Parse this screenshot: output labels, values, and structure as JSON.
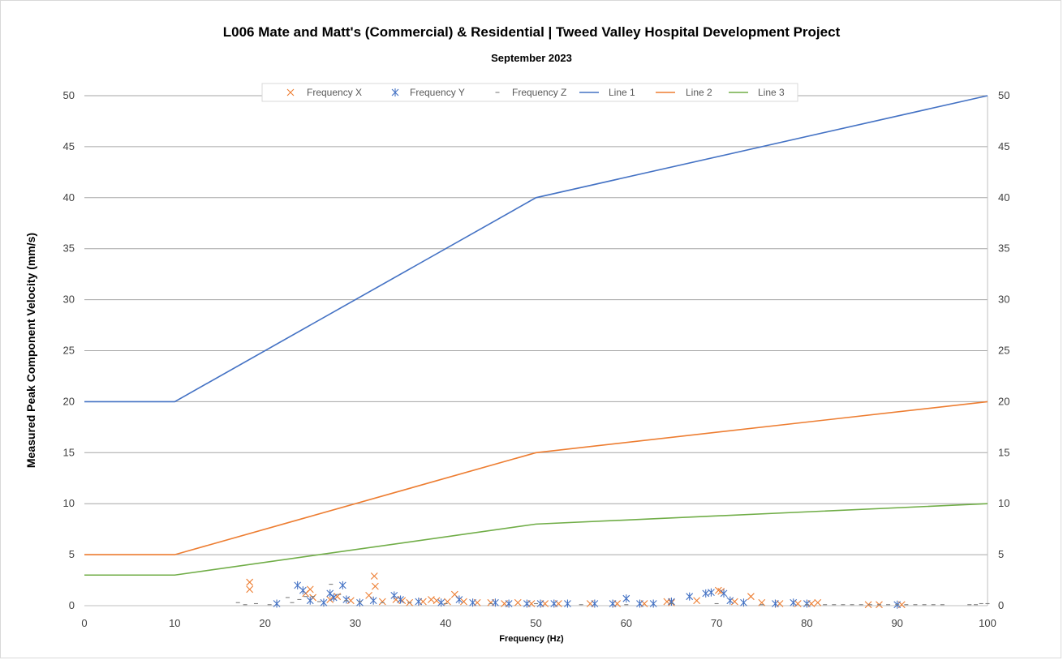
{
  "chart_data": {
    "type": "scatter",
    "title": "L006 Mate and Matt's (Commercial) & Residential | Tweed Valley Hospital Development Project",
    "subtitle": "September 2023",
    "xlabel": "Frequency (Hz)",
    "ylabel": "Measured Peak Component Velocity (mm/s)",
    "xlim": [
      0,
      100
    ],
    "ylim": [
      0,
      50
    ],
    "x_ticks": [
      "0",
      "10",
      "20",
      "30",
      "40",
      "50",
      "60",
      "70",
      "80",
      "90",
      "100"
    ],
    "y_ticks": [
      "0",
      "5",
      "10",
      "15",
      "20",
      "25",
      "30",
      "35",
      "40",
      "45",
      "50"
    ],
    "grid": "horizontal",
    "legend_position": "top-center",
    "series": [
      {
        "name": "Frequency X",
        "kind": "scatter",
        "marker": "x",
        "color": "#ed7d31",
        "points": [
          [
            18.3,
            2.3
          ],
          [
            18.3,
            1.6
          ],
          [
            24.5,
            1.2
          ],
          [
            25.0,
            1.6
          ],
          [
            25.3,
            0.8
          ],
          [
            27.2,
            0.6
          ],
          [
            28.0,
            0.9
          ],
          [
            29.5,
            0.5
          ],
          [
            31.5,
            1.0
          ],
          [
            32.1,
            2.9
          ],
          [
            32.2,
            1.9
          ],
          [
            33.0,
            0.4
          ],
          [
            34.5,
            0.6
          ],
          [
            35.2,
            0.5
          ],
          [
            36.0,
            0.3
          ],
          [
            37.5,
            0.4
          ],
          [
            38.4,
            0.6
          ],
          [
            39.0,
            0.5
          ],
          [
            40.2,
            0.4
          ],
          [
            41.0,
            1.1
          ],
          [
            42.0,
            0.4
          ],
          [
            43.5,
            0.3
          ],
          [
            45.0,
            0.3
          ],
          [
            46.5,
            0.2
          ],
          [
            48.0,
            0.3
          ],
          [
            49.5,
            0.2
          ],
          [
            51.0,
            0.2
          ],
          [
            52.5,
            0.2
          ],
          [
            56.0,
            0.2
          ],
          [
            59.0,
            0.2
          ],
          [
            62.0,
            0.2
          ],
          [
            64.5,
            0.4
          ],
          [
            65.0,
            0.3
          ],
          [
            67.8,
            0.5
          ],
          [
            70.2,
            1.5
          ],
          [
            70.5,
            1.4
          ],
          [
            72.0,
            0.4
          ],
          [
            73.8,
            0.9
          ],
          [
            75.0,
            0.3
          ],
          [
            77.0,
            0.2
          ],
          [
            79.0,
            0.2
          ],
          [
            80.5,
            0.2
          ],
          [
            81.2,
            0.3
          ],
          [
            86.8,
            0.1
          ],
          [
            88.0,
            0.1
          ],
          [
            90.5,
            0.1
          ]
        ]
      },
      {
        "name": "Frequency Y",
        "kind": "scatter",
        "marker": "star",
        "color": "#4472c4",
        "points": [
          [
            21.3,
            0.2
          ],
          [
            23.6,
            2.0
          ],
          [
            24.2,
            1.5
          ],
          [
            25.0,
            0.5
          ],
          [
            26.5,
            0.3
          ],
          [
            27.2,
            1.2
          ],
          [
            27.6,
            0.8
          ],
          [
            28.6,
            2.0
          ],
          [
            29.0,
            0.6
          ],
          [
            30.5,
            0.3
          ],
          [
            32.0,
            0.5
          ],
          [
            34.3,
            1.0
          ],
          [
            35.0,
            0.6
          ],
          [
            37.0,
            0.4
          ],
          [
            39.5,
            0.3
          ],
          [
            41.5,
            0.6
          ],
          [
            43.0,
            0.3
          ],
          [
            45.5,
            0.3
          ],
          [
            47.0,
            0.2
          ],
          [
            49.0,
            0.2
          ],
          [
            50.5,
            0.2
          ],
          [
            52.0,
            0.2
          ],
          [
            53.5,
            0.2
          ],
          [
            56.5,
            0.2
          ],
          [
            58.5,
            0.2
          ],
          [
            60.0,
            0.7
          ],
          [
            61.5,
            0.2
          ],
          [
            63.0,
            0.2
          ],
          [
            65.0,
            0.4
          ],
          [
            67.0,
            0.9
          ],
          [
            68.8,
            1.2
          ],
          [
            69.4,
            1.3
          ],
          [
            70.8,
            1.2
          ],
          [
            71.5,
            0.5
          ],
          [
            73.0,
            0.3
          ],
          [
            76.5,
            0.2
          ],
          [
            78.5,
            0.3
          ],
          [
            80.0,
            0.2
          ],
          [
            90.0,
            0.1
          ]
        ]
      },
      {
        "name": "Frequency Z",
        "kind": "scatter",
        "marker": "dash",
        "color": "#7f7f7f",
        "points": [
          [
            17.0,
            0.3
          ],
          [
            17.8,
            0.1
          ],
          [
            19.0,
            0.2
          ],
          [
            20.5,
            0.1
          ],
          [
            22.5,
            0.8
          ],
          [
            23.0,
            0.3
          ],
          [
            23.8,
            0.6
          ],
          [
            24.5,
            0.9
          ],
          [
            25.3,
            0.9
          ],
          [
            26.0,
            0.4
          ],
          [
            27.3,
            2.1
          ],
          [
            28.2,
            1.1
          ],
          [
            29.0,
            0.5
          ],
          [
            30.5,
            0.4
          ],
          [
            33.0,
            0.3
          ],
          [
            36.0,
            0.3
          ],
          [
            40.0,
            0.2
          ],
          [
            45.0,
            0.2
          ],
          [
            50.0,
            0.2
          ],
          [
            55.0,
            0.1
          ],
          [
            60.0,
            0.1
          ],
          [
            65.0,
            0.2
          ],
          [
            70.0,
            0.2
          ],
          [
            75.0,
            0.1
          ],
          [
            80.0,
            0.1
          ],
          [
            82.0,
            0.1
          ],
          [
            83.0,
            0.1
          ],
          [
            84.0,
            0.1
          ],
          [
            85.0,
            0.1
          ],
          [
            86.0,
            0.1
          ],
          [
            87.0,
            0.1
          ],
          [
            88.0,
            0.1
          ],
          [
            89.0,
            0.1
          ],
          [
            90.0,
            0.1
          ],
          [
            91.0,
            0.1
          ],
          [
            92.0,
            0.1
          ],
          [
            93.0,
            0.1
          ],
          [
            94.0,
            0.1
          ],
          [
            95.0,
            0.1
          ],
          [
            98.0,
            0.1
          ],
          [
            98.7,
            0.1
          ],
          [
            99.3,
            0.2
          ],
          [
            100.0,
            0.2
          ]
        ]
      },
      {
        "name": "Line 1",
        "kind": "line",
        "color": "#4472c4",
        "points": [
          [
            0,
            20
          ],
          [
            10,
            20
          ],
          [
            50,
            40
          ],
          [
            100,
            50
          ]
        ]
      },
      {
        "name": "Line 2",
        "kind": "line",
        "color": "#ed7d31",
        "points": [
          [
            0,
            5
          ],
          [
            10,
            5
          ],
          [
            50,
            15
          ],
          [
            100,
            20
          ]
        ]
      },
      {
        "name": "Line 3",
        "kind": "line",
        "color": "#70ad47",
        "points": [
          [
            0,
            3
          ],
          [
            10,
            3
          ],
          [
            50,
            8
          ],
          [
            100,
            10
          ]
        ]
      }
    ]
  }
}
